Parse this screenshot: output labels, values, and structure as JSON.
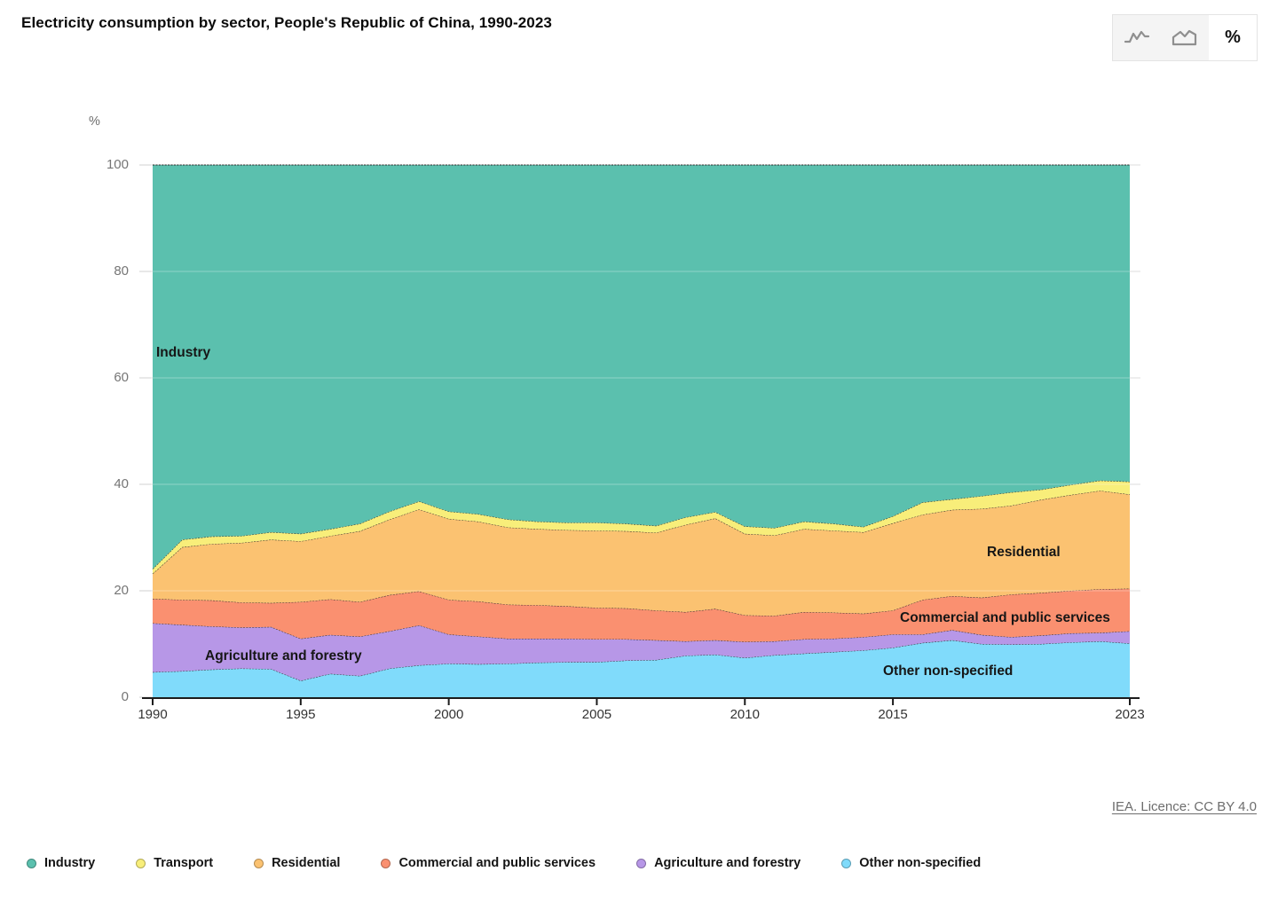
{
  "header": {
    "title": "Electricity consumption by sector, People's Republic of China, 1990-2023"
  },
  "toolbar": {
    "buttons": [
      {
        "id": "line-chart",
        "icon": "line-chart-icon",
        "active": false
      },
      {
        "id": "stacked-area-chart",
        "icon": "area-chart-icon",
        "active": false
      },
      {
        "id": "percent",
        "label": "%",
        "active": true
      }
    ]
  },
  "chart_data": {
    "type": "area",
    "stacking": "percent",
    "title": "Electricity consumption by sector, People's Republic of China, 1990-2023",
    "xlabel": "",
    "ylabel": "%",
    "ylim": [
      0,
      100
    ],
    "y_ticks": [
      0,
      20,
      40,
      60,
      80,
      100
    ],
    "grid": true,
    "legend_position": "bottom",
    "x": [
      1990,
      1991,
      1992,
      1993,
      1994,
      1995,
      1996,
      1997,
      1998,
      1999,
      2000,
      2001,
      2002,
      2003,
      2004,
      2005,
      2006,
      2007,
      2008,
      2009,
      2010,
      2011,
      2012,
      2013,
      2014,
      2015,
      2016,
      2017,
      2018,
      2019,
      2020,
      2021,
      2022,
      2023
    ],
    "x_tick_labels": [
      "1990",
      "1995",
      "2000",
      "2005",
      "2010",
      "2015",
      "2023"
    ],
    "x_tick_years": [
      1990,
      1995,
      2000,
      2005,
      2010,
      2015,
      2023
    ],
    "series": [
      {
        "name": "Other non-specified",
        "key": "other",
        "color": "#80DBFB",
        "values": [
          4.7,
          4.9,
          5.2,
          5.4,
          5.3,
          3.1,
          4.4,
          4.0,
          5.4,
          6.0,
          6.3,
          6.2,
          6.3,
          6.5,
          6.6,
          6.6,
          6.9,
          7.0,
          7.8,
          8.0,
          7.4,
          7.9,
          8.2,
          8.5,
          8.8,
          9.3,
          10.2,
          10.7,
          10.0,
          9.9,
          10.0,
          10.3,
          10.5,
          10.1
        ]
      },
      {
        "name": "Agriculture and forestry",
        "key": "agriculture",
        "color": "#B797E7",
        "values": [
          9.2,
          8.7,
          8.1,
          7.7,
          7.9,
          7.9,
          7.3,
          7.4,
          7.0,
          7.5,
          5.5,
          5.2,
          4.7,
          4.5,
          4.4,
          4.3,
          4.0,
          3.7,
          2.7,
          2.7,
          3.0,
          2.6,
          2.7,
          2.5,
          2.5,
          2.5,
          1.6,
          1.9,
          1.7,
          1.4,
          1.6,
          1.7,
          1.6,
          2.3
        ]
      },
      {
        "name": "Commercial and public services",
        "key": "commercial",
        "color": "#FA9070",
        "values": [
          4.6,
          4.7,
          4.9,
          4.7,
          4.5,
          6.9,
          6.7,
          6.5,
          6.8,
          6.4,
          6.5,
          6.6,
          6.4,
          6.3,
          6.1,
          5.9,
          5.8,
          5.6,
          5.5,
          5.9,
          5.0,
          4.8,
          5.1,
          4.9,
          4.4,
          4.5,
          6.5,
          6.4,
          7.0,
          8.0,
          8.0,
          8.0,
          8.2,
          8.0
        ]
      },
      {
        "name": "Residential",
        "key": "residential",
        "color": "#FBC271",
        "values": [
          4.7,
          9.9,
          10.6,
          11.2,
          11.9,
          11.4,
          11.9,
          13.3,
          14.2,
          15.4,
          15.2,
          15.0,
          14.5,
          14.3,
          14.3,
          14.5,
          14.5,
          14.6,
          16.4,
          17.0,
          15.3,
          15.1,
          15.6,
          15.4,
          15.3,
          16.4,
          16.0,
          16.2,
          16.7,
          16.7,
          17.5,
          18.0,
          18.5,
          17.7
        ]
      },
      {
        "name": "Transport",
        "key": "transport",
        "color": "#F8EE7A",
        "values": [
          0.9,
          1.4,
          1.4,
          1.3,
          1.4,
          1.4,
          1.3,
          1.4,
          1.5,
          1.5,
          1.4,
          1.4,
          1.5,
          1.4,
          1.4,
          1.5,
          1.4,
          1.3,
          1.4,
          1.2,
          1.4,
          1.4,
          1.4,
          1.3,
          1.0,
          1.3,
          2.3,
          2.0,
          2.4,
          2.5,
          1.9,
          1.9,
          1.9,
          2.4
        ]
      },
      {
        "name": "Industry",
        "key": "industry",
        "color": "#5BC0AE",
        "values": [
          75.9,
          70.4,
          69.8,
          69.7,
          69.0,
          69.3,
          68.4,
          67.4,
          65.1,
          63.2,
          65.1,
          65.6,
          66.6,
          67.0,
          67.2,
          67.2,
          67.4,
          67.8,
          66.2,
          65.2,
          67.9,
          68.2,
          67.0,
          67.4,
          68.0,
          66.0,
          63.4,
          62.8,
          62.2,
          61.5,
          61.0,
          60.1,
          59.3,
          59.5
        ]
      }
    ],
    "area_labels": {
      "industry": "Industry",
      "residential": "Residential",
      "commercial": "Commercial and public services",
      "agriculture": "Agriculture and forestry",
      "other": "Other non-specified"
    }
  },
  "legend": {
    "items": [
      {
        "label": "Industry",
        "color": "#5BC0AE"
      },
      {
        "label": "Transport",
        "color": "#F8EE7A"
      },
      {
        "label": "Residential",
        "color": "#FBC271"
      },
      {
        "label": "Commercial and public services",
        "color": "#FA9070"
      },
      {
        "label": "Agriculture and forestry",
        "color": "#B797E7"
      },
      {
        "label": "Other non-specified",
        "color": "#80DBFB"
      }
    ]
  },
  "attribution": {
    "text": "IEA. Licence: CC BY 4.0"
  }
}
